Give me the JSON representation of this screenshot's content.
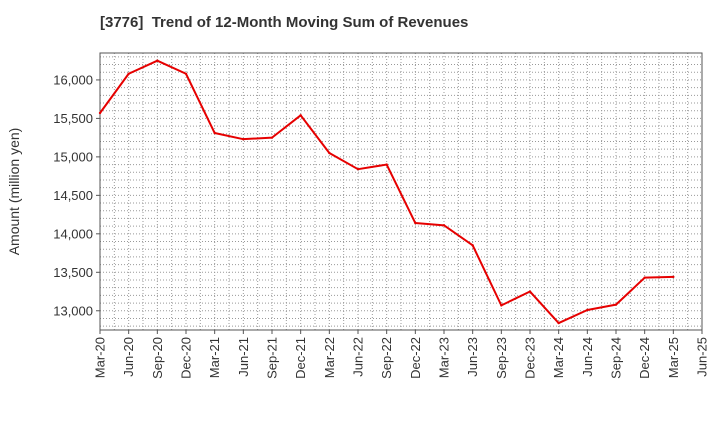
{
  "chart_data": {
    "type": "line",
    "title": "[3776]  Trend of 12-Month Moving Sum of Revenues",
    "xlabel": "",
    "ylabel": "Amount (million yen)",
    "ylim": [
      12750,
      16350
    ],
    "yticks": [
      13000,
      13500,
      14000,
      14500,
      15000,
      15500,
      16000
    ],
    "ytick_labels": [
      "13,000",
      "13,500",
      "14,000",
      "14,500",
      "15,000",
      "15,500",
      "16,000"
    ],
    "categories": [
      "Mar-20",
      "Jun-20",
      "Sep-20",
      "Dec-20",
      "Mar-21",
      "Jun-21",
      "Sep-21",
      "Dec-21",
      "Mar-22",
      "Jun-22",
      "Sep-22",
      "Dec-22",
      "Mar-23",
      "Jun-23",
      "Sep-23",
      "Dec-23",
      "Mar-24",
      "Jun-24",
      "Sep-24",
      "Dec-24",
      "Mar-25",
      "Jun-25"
    ],
    "series": [
      {
        "values": [
          15570,
          16080,
          16250,
          16080,
          15310,
          15230,
          15250,
          15540,
          15050,
          14840,
          14900,
          14140,
          14110,
          13850,
          13070,
          13250,
          12840,
          13010,
          13080,
          13430,
          13440,
          null
        ]
      }
    ],
    "grid": true,
    "colors": {
      "line": "#e60000",
      "grid": "#999999",
      "axis": "#555555"
    }
  }
}
